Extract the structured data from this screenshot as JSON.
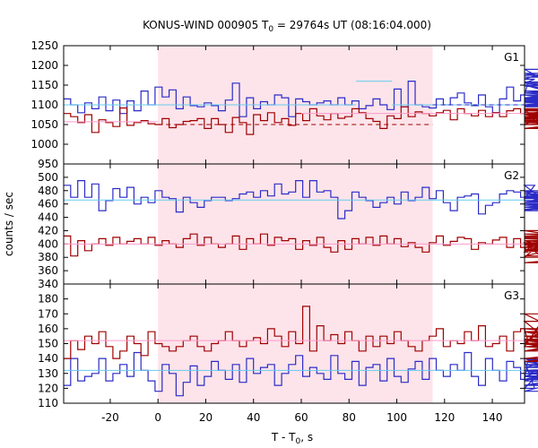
{
  "chart_data": {
    "type": "line",
    "title_main": "KONUS-WIND 000905 T",
    "title_sub": "0",
    "title_rest": " = 29764s UT (08:16:04.000)",
    "xlabel_main": "T - T",
    "xlabel_sub": "0",
    "xlabel_rest": ", s",
    "ylabel": "counts / sec",
    "xlim": [
      -39.5,
      153.5
    ],
    "x_ticks": [
      -20,
      0,
      20,
      40,
      60,
      80,
      100,
      120,
      140
    ],
    "highlight_interval": [
      0,
      115
    ],
    "colors": {
      "blue": "#2b2bc8",
      "red": "#a00000",
      "cyan": "#66ccee",
      "pink": "#ff99cc",
      "shade": "#fde4ea"
    },
    "bin_start": -39.5,
    "bin_width": 2.944,
    "panels": [
      {
        "label": "G1",
        "ylim": [
          950,
          1250
        ],
        "y_ticks": [
          950,
          1000,
          1050,
          1100,
          1150,
          1200,
          1250
        ],
        "series": [
          {
            "color": "blue",
            "values": [
              1115,
              1100,
              1080,
              1105,
              1090,
              1120,
              1085,
              1112,
              1078,
              1110,
              1085,
              1135,
              1100,
              1145,
              1120,
              1138,
              1090,
              1120,
              1098,
              1095,
              1105,
              1098,
              1085,
              1112,
              1155,
              1070,
              1118,
              1090,
              1108,
              1100,
              1125,
              1118,
              1070,
              1115,
              1108,
              1100,
              1105,
              1110,
              1100,
              1118,
              1100,
              1110,
              1090,
              1098,
              1115,
              1100,
              1088,
              1140,
              1095,
              1160,
              1100,
              1095,
              1092,
              1115,
              1100,
              1118,
              1130,
              1105,
              1098,
              1125,
              1095,
              1080,
              1115,
              1145,
              1110,
              1125,
              1155,
              1165,
              1180,
              1170,
              1175,
              1190,
              1130,
              1150,
              1110,
              1148,
              1125,
              1095,
              1110,
              1105,
              1108,
              1125,
              1108,
              1112,
              1095,
              1115,
              1108,
              1100,
              1135,
              1100,
              1112,
              1105,
              1115,
              1130,
              1095,
              1098,
              1107,
              1118,
              1155,
              1098,
              1158
            ]
          },
          {
            "color": "red",
            "values": [
              1078,
              1070,
              1055,
              1075,
              1030,
              1062,
              1055,
              1045,
              1092,
              1048,
              1055,
              1060,
              1052,
              1050,
              1065,
              1042,
              1050,
              1058,
              1060,
              1065,
              1040,
              1065,
              1050,
              1030,
              1068,
              1055,
              1025,
              1075,
              1060,
              1080,
              1055,
              1065,
              1048,
              1078,
              1060,
              1090,
              1072,
              1062,
              1078,
              1066,
              1070,
              1090,
              1080,
              1065,
              1058,
              1040,
              1072,
              1065,
              1095,
              1070,
              1082,
              1078,
              1072,
              1080,
              1086,
              1062,
              1090,
              1078,
              1072,
              1086,
              1070,
              1080,
              1070,
              1085,
              1090,
              1078,
              1090,
              1062,
              1050,
              1075,
              1090,
              1080,
              1065,
              1085,
              1090,
              1075,
              1070,
              1085,
              1080,
              1065,
              1090,
              1065,
              1075,
              1040,
              1080,
              1075,
              1065,
              1088,
              1050,
              1060,
              1068,
              1055,
              1040,
              1060,
              1050,
              1058,
              1040,
              1060,
              1068,
              1055,
              1050
            ]
          }
        ],
        "fits": [
          {
            "color": "cyan",
            "dashed": false,
            "from": -39.5,
            "to": 83,
            "y": 1100
          },
          {
            "color": "cyan",
            "dashed": false,
            "from": 83,
            "to": 98,
            "y": 1160
          },
          {
            "color": "cyan",
            "dashed": false,
            "from": 98,
            "to": 153.5,
            "y": 1100
          },
          {
            "color": "blue",
            "dashed": true,
            "from": 115,
            "to": 153.5,
            "y": 1100
          },
          {
            "color": "pink",
            "dashed": false,
            "from": -39.5,
            "to": 0,
            "y": 1057
          },
          {
            "color": "pink",
            "dashed": false,
            "from": 60,
            "to": 153.5,
            "y": 1078
          },
          {
            "color": "red",
            "dashed": true,
            "from": 0,
            "to": 115,
            "y": 1050
          }
        ]
      },
      {
        "label": "G2",
        "ylim": [
          340,
          520
        ],
        "y_ticks": [
          340,
          360,
          380,
          400,
          420,
          440,
          460,
          480,
          500
        ],
        "series": [
          {
            "color": "blue",
            "values": [
              488,
              470,
              495,
              470,
              490,
              450,
              465,
              483,
              470,
              485,
              460,
              470,
              462,
              480,
              470,
              468,
              448,
              470,
              462,
              455,
              465,
              470,
              470,
              465,
              468,
              475,
              478,
              470,
              480,
              472,
              490,
              475,
              478,
              495,
              470,
              495,
              478,
              480,
              470,
              438,
              450,
              478,
              470,
              465,
              455,
              462,
              470,
              460,
              478,
              465,
              470,
              485,
              468,
              480,
              462,
              450,
              470,
              472,
              475,
              445,
              458,
              462,
              475,
              480,
              478,
              470,
              468,
              488,
              468,
              470,
              478,
              462,
              480,
              470,
              455,
              465,
              460,
              462,
              475,
              458,
              460,
              450,
              478,
              470,
              455,
              472,
              465,
              460,
              455,
              452,
              478,
              470,
              468,
              472,
              455,
              462,
              470,
              475,
              465,
              462,
              470
            ]
          },
          {
            "color": "red",
            "values": [
              412,
              382,
              405,
              390,
              400,
              408,
              398,
              410,
              400,
              404,
              408,
              400,
              410,
              398,
              405,
              400,
              395,
              408,
              415,
              398,
              410,
              400,
              395,
              400,
              412,
              392,
              408,
              400,
              415,
              398,
              410,
              405,
              408,
              392,
              405,
              398,
              410,
              395,
              388,
              405,
              392,
              408,
              400,
              410,
              398,
              412,
              400,
              408,
              396,
              402,
              395,
              388,
              402,
              412,
              398,
              404,
              410,
              408,
              392,
              402,
              400,
              406,
              410,
              395,
              408,
              395,
              388,
              402,
              380,
              412,
              400,
              390,
              405,
              382,
              402,
              398,
              410,
              395,
              420,
              398,
              405,
              395,
              400,
              415,
              405,
              390,
              405,
              408,
              400,
              395,
              405,
              390,
              372,
              398,
              410,
              398,
              405,
              392,
              412,
              408,
              405
            ]
          }
        ],
        "fits": [
          {
            "color": "cyan",
            "dashed": false,
            "from": -39.5,
            "to": 153.5,
            "y": 466
          },
          {
            "color": "pink",
            "dashed": false,
            "from": -39.5,
            "to": 153.5,
            "y": 400
          }
        ]
      },
      {
        "label": "G3",
        "ylim": [
          110,
          190
        ],
        "y_ticks": [
          110,
          120,
          130,
          140,
          150,
          160,
          170,
          180
        ],
        "series": [
          {
            "color": "blue",
            "values": [
              122,
              140,
              125,
              128,
              130,
              140,
              125,
              130,
              136,
              128,
              144,
              132,
              125,
              118,
              136,
              130,
              115,
              124,
              135,
              122,
              128,
              138,
              132,
              126,
              136,
              124,
              140,
              130,
              134,
              136,
              122,
              130,
              136,
              142,
              128,
              134,
              130,
              126,
              142,
              130,
              126,
              138,
              122,
              134,
              136,
              125,
              140,
              128,
              124,
              133,
              138,
              126,
              140,
              132,
              128,
              136,
              132,
              144,
              128,
              122,
              140,
              132,
              125,
              138,
              134,
              126,
              138,
              120,
              132,
              128,
              134,
              140,
              128,
              125,
              138,
              130,
              132,
              126,
              140,
              118,
              136,
              128,
              132,
              126,
              132,
              136,
              128,
              122,
              140,
              126,
              132,
              136,
              130,
              128,
              134,
              140,
              126,
              130,
              122,
              132,
              134
            ]
          },
          {
            "color": "red",
            "values": [
              140,
              152,
              146,
              155,
              150,
              158,
              148,
              140,
              145,
              155,
              150,
              142,
              158,
              150,
              148,
              145,
              148,
              152,
              155,
              148,
              145,
              150,
              152,
              158,
              152,
              148,
              152,
              154,
              150,
              160,
              155,
              148,
              158,
              150,
              175,
              145,
              162,
              152,
              156,
              150,
              158,
              152,
              145,
              155,
              148,
              155,
              150,
              158,
              152,
              148,
              145,
              152,
              155,
              160,
              148,
              152,
              150,
              158,
              152,
              162,
              148,
              150,
              155,
              145,
              158,
              160,
              152,
              148,
              165,
              152,
              150,
              170,
              155,
              152,
              158,
              148,
              145,
              155,
              152,
              150,
              138,
              145,
              155,
              158,
              150,
              152,
              145,
              155,
              158,
              152,
              150,
              140,
              152,
              158,
              160,
              148,
              152,
              150,
              158,
              153,
              155
            ]
          }
        ],
        "fits": [
          {
            "color": "cyan",
            "dashed": false,
            "from": -39.5,
            "to": 153.5,
            "y": 132
          },
          {
            "color": "pink",
            "dashed": false,
            "from": -39.5,
            "to": 153.5,
            "y": 152
          }
        ]
      }
    ]
  }
}
